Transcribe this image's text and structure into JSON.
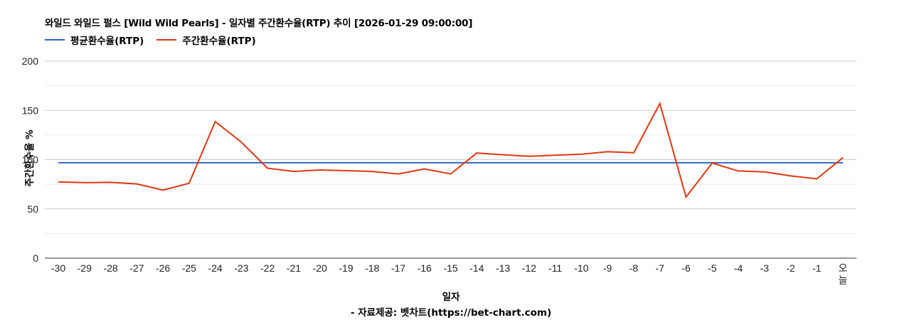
{
  "header": {
    "title": "와일드 와일드 펄스 [Wild Wild Pearls] - 일자별 주간환수율(RTP) 추이 [2026-01-29 09:00:00]"
  },
  "legend": {
    "items": [
      {
        "label": "평균환수율(RTP)",
        "color": "#3366cc"
      },
      {
        "label": "주간환수율(RTP)",
        "color": "#dc3912"
      }
    ]
  },
  "footer": {
    "xlabel": "일자",
    "source": "- 자료제공: 벳차트(https://bet-chart.com)"
  },
  "chart_data": {
    "type": "line",
    "title": "와일드 와일드 펄스 [Wild Wild Pearls] - 일자별 주간환수율(RTP) 추이 [2026-01-29 09:00:00]",
    "xlabel": "일자",
    "ylabel": "주간환수율 %",
    "ylim": [
      0,
      200
    ],
    "yticks": [
      0,
      50,
      100,
      150,
      200
    ],
    "grid": true,
    "legend_position": "top",
    "categories": [
      "-30",
      "-29",
      "-28",
      "-27",
      "-26",
      "-25",
      "-24",
      "-23",
      "-22",
      "-21",
      "-20",
      "-19",
      "-18",
      "-17",
      "-16",
      "-15",
      "-14",
      "-13",
      "-12",
      "-11",
      "-10",
      "-9",
      "-8",
      "-7",
      "-6",
      "-5",
      "-4",
      "-3",
      "-2",
      "-1",
      "오늘"
    ],
    "series": [
      {
        "name": "평균환수율(RTP)",
        "color": "#3366cc",
        "values": [
          96.8,
          96.8,
          96.8,
          96.8,
          96.8,
          96.8,
          96.8,
          96.8,
          96.8,
          96.8,
          96.8,
          96.8,
          96.8,
          96.8,
          96.8,
          96.8,
          96.8,
          96.8,
          96.8,
          96.8,
          96.8,
          96.8,
          96.8,
          96.8,
          96.8,
          96.8,
          96.8,
          96.8,
          96.8,
          96.8,
          96.8
        ]
      },
      {
        "name": "주간환수율(RTP)",
        "color": "#dc3912",
        "values": [
          77.3,
          76.7,
          77.0,
          75.4,
          69.0,
          76.0,
          138.6,
          117.7,
          91.3,
          88.0,
          89.5,
          88.8,
          88.0,
          85.5,
          90.6,
          85.5,
          106.7,
          105.0,
          103.5,
          104.5,
          105.5,
          108.0,
          107.0,
          157.0,
          62.0,
          96.5,
          88.5,
          87.5,
          83.5,
          80.5,
          102.0
        ]
      }
    ]
  }
}
